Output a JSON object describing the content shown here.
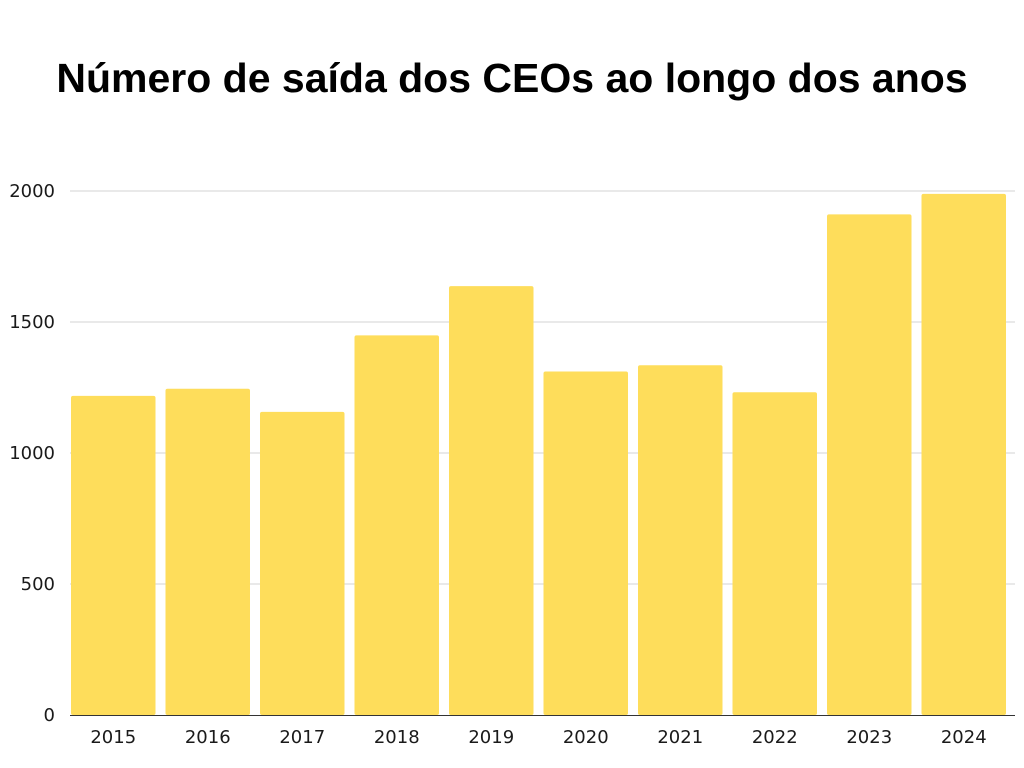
{
  "chart_data": {
    "type": "bar",
    "title": "Número de saída dos CEOs ao longo dos anos",
    "xlabel": "",
    "ylabel": "",
    "categories": [
      "2015",
      "2016",
      "2017",
      "2018",
      "2019",
      "2020",
      "2021",
      "2022",
      "2023",
      "2024"
    ],
    "values": [
      1218,
      1245,
      1157,
      1449,
      1637,
      1311,
      1335,
      1232,
      1911,
      1989
    ],
    "ylim": [
      0,
      2000
    ],
    "yticks": [
      0,
      500,
      1000,
      1500,
      2000
    ],
    "grid": true,
    "legend": "none",
    "colors": {
      "bar": "#FEDD5B",
      "grid": "#d3d3d3",
      "axis": "#333333",
      "text": "#1a1a1a"
    }
  }
}
